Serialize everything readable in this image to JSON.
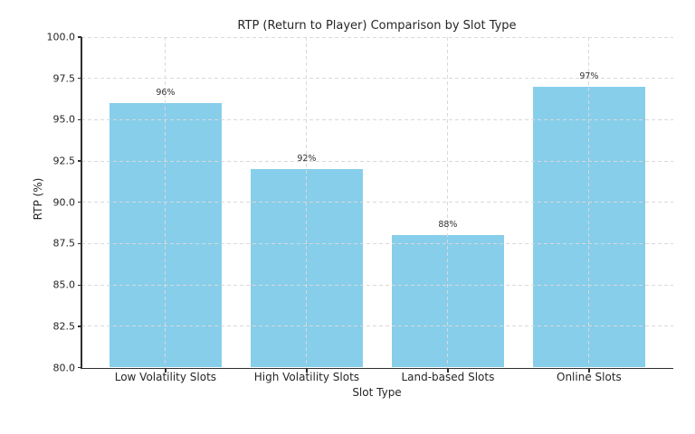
{
  "chart_data": {
    "type": "bar",
    "title": "RTP (Return to Player) Comparison by Slot Type",
    "xlabel": "Slot Type",
    "ylabel": "RTP (%)",
    "categories": [
      "Low Volatility Slots",
      "High Volatility Slots",
      "Land-based Slots",
      "Online Slots"
    ],
    "values": [
      96,
      92,
      88,
      97
    ],
    "bar_labels": [
      "96%",
      "92%",
      "88%",
      "97%"
    ],
    "ylim": [
      80,
      100
    ],
    "yticks": [
      {
        "value": 80,
        "label": "80.0"
      },
      {
        "value": 82.5,
        "label": "82.5"
      },
      {
        "value": 85,
        "label": "85.0"
      },
      {
        "value": 87.5,
        "label": "87.5"
      },
      {
        "value": 90,
        "label": "90.0"
      },
      {
        "value": 92.5,
        "label": "92.5"
      },
      {
        "value": 95,
        "label": "95.0"
      },
      {
        "value": 97.5,
        "label": "97.5"
      },
      {
        "value": 100,
        "label": "100.0"
      }
    ],
    "grid": {
      "style": "dashed",
      "axis": "both",
      "visible": true
    },
    "legend": {
      "position": "none"
    },
    "colors": {
      "bar": "#87CEEB",
      "grid": "#d9d9d9",
      "spine": "#2f2f2f",
      "text": "#262626",
      "value_label": "#333333",
      "background": "#ffffff"
    }
  }
}
